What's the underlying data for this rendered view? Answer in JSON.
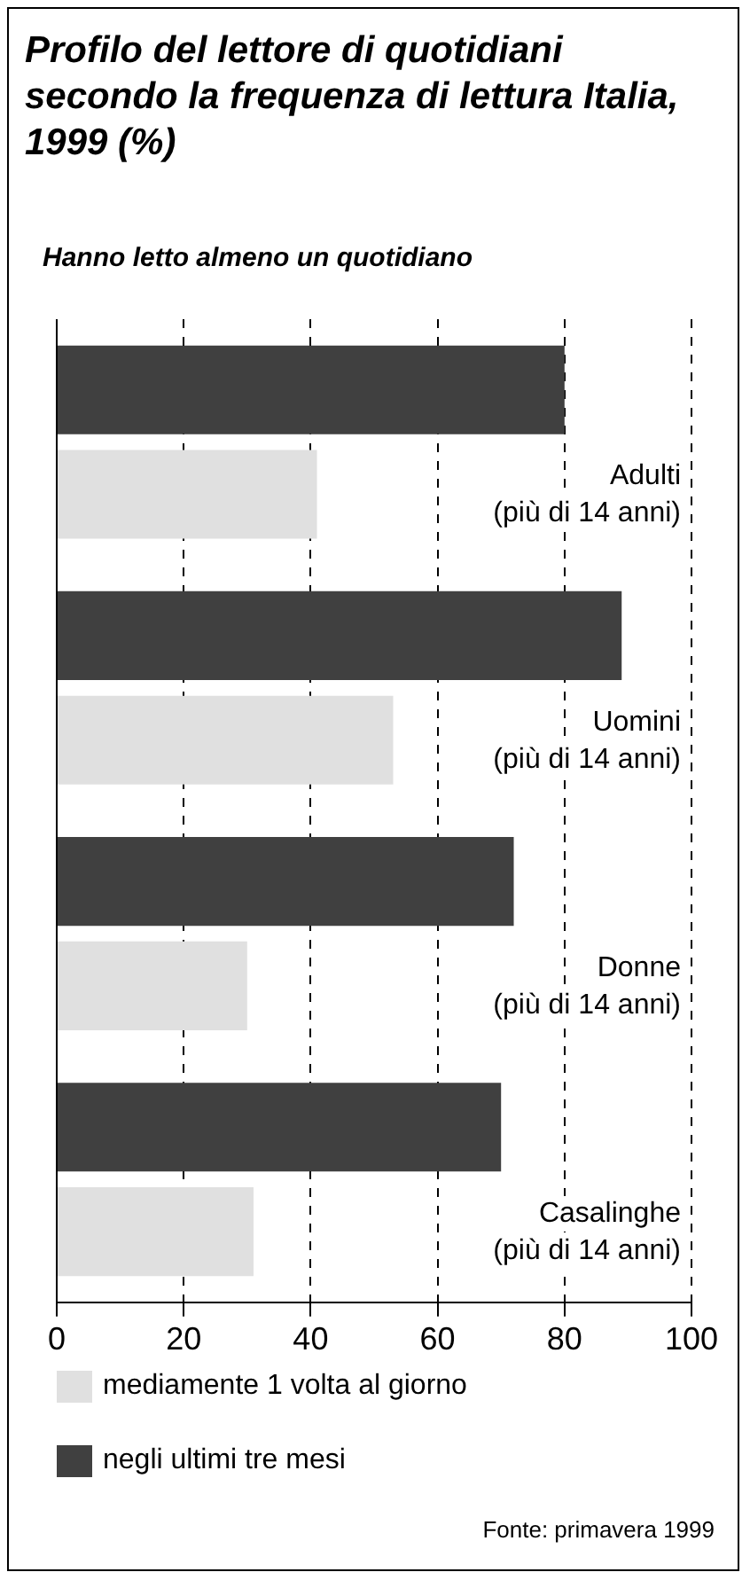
{
  "chart_data": {
    "type": "bar",
    "orientation": "horizontal",
    "title": "Profilo del lettore di quotidiani secondo la frequenza di lettura Italia, 1999 (%)",
    "subtitle": "Hanno letto almeno un quotidiano",
    "categories": [
      "Adulti\n(più di 14 anni)",
      "Uomini\n(più di 14 anni)",
      "Donne\n(più di 14 anni)",
      "Casalinghe\n(più di 14 anni)"
    ],
    "series": [
      {
        "name": "negli ultimi tre mesi",
        "color": "#404040",
        "values": [
          80,
          89,
          72,
          70
        ]
      },
      {
        "name": "mediamente 1 volta al giorno",
        "color": "#e0e0e0",
        "values": [
          41,
          53,
          30,
          31
        ]
      }
    ],
    "xlim": [
      0,
      100
    ],
    "xticks": [
      0,
      20,
      40,
      60,
      80,
      100
    ],
    "grid": "x",
    "legend": "bottom",
    "annotations": [
      "Fonte: primavera 1999"
    ]
  }
}
